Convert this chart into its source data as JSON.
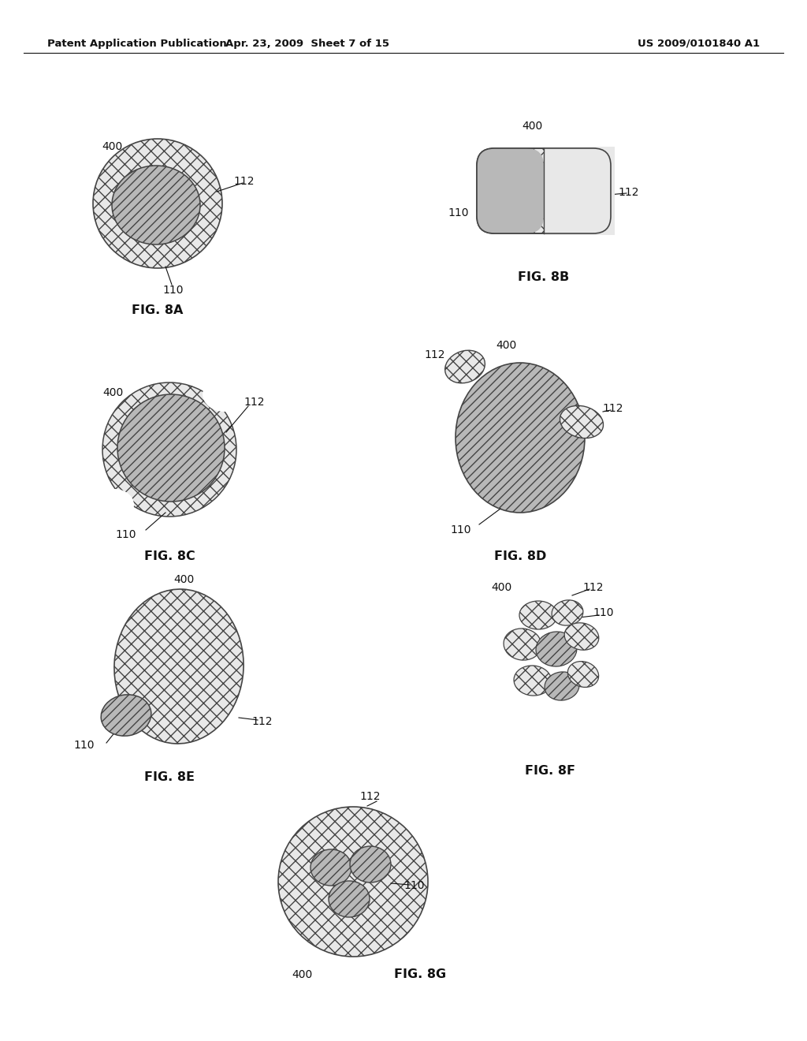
{
  "header_left": "Patent Application Publication",
  "header_mid": "Apr. 23, 2009  Sheet 7 of 15",
  "header_right": "US 2009/0101840 A1",
  "bg_color": "#ffffff",
  "hatch_cross": "xx",
  "hatch_diag": "///",
  "fc_cross": "#e8e8e8",
  "fc_diag": "#b8b8b8",
  "ec": "#444444",
  "lw": 1.1
}
